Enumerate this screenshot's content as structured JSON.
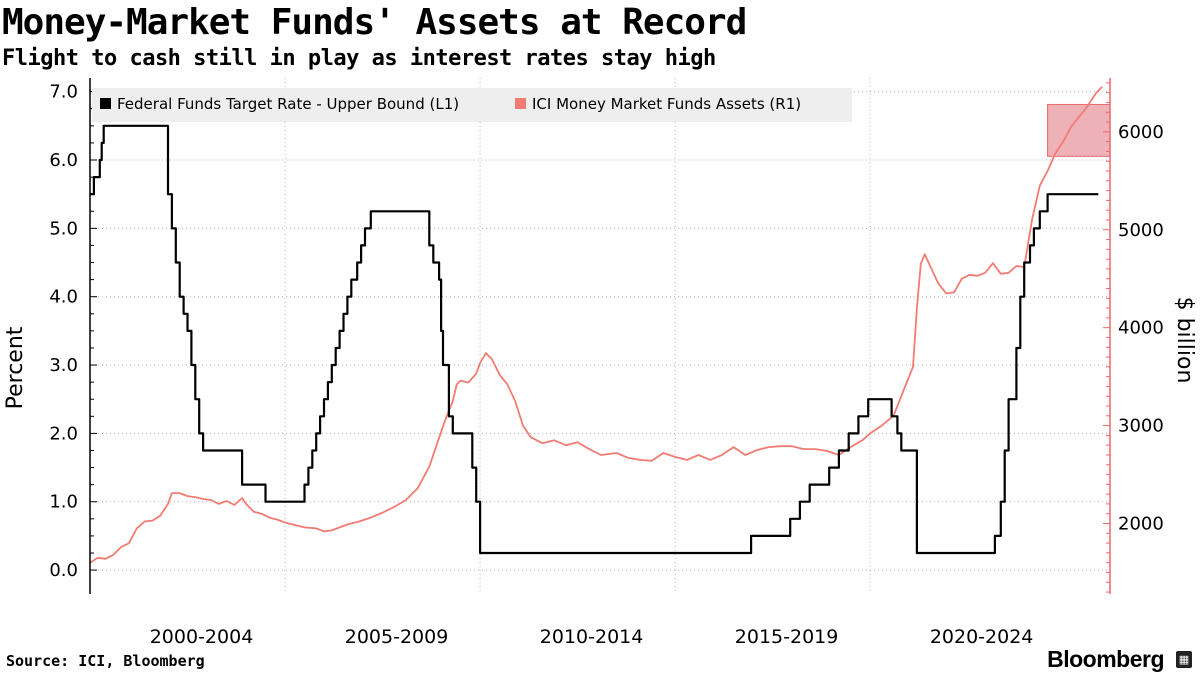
{
  "title": "Money-Market Funds' Assets at Record",
  "subtitle": "Flight to cash still in play as interest rates stay high",
  "footer": {
    "source": "Source: ICI, Bloomberg",
    "brand": "Bloomberg"
  },
  "colors": {
    "rate_line": "#000000",
    "assets_line": "#f07c73",
    "right_axis": "#e8686c",
    "highlight": "#e8909a",
    "grid": "#b5b5b5",
    "legend_bg": "#eeeeee"
  },
  "chart_data": {
    "type": "line",
    "title": "Money-Market Funds' Assets at Record",
    "subtitle": "Flight to cash still in play as interest rates stay high",
    "left_axis": {
      "label": "Percent",
      "range": [
        -0.35,
        7.2
      ],
      "ticks": [
        0.0,
        1.0,
        2.0,
        3.0,
        4.0,
        5.0,
        6.0,
        7.0
      ],
      "tick_labels": [
        "0.0",
        "1.0",
        "2.0",
        "3.0",
        "4.0",
        "5.0",
        "6.0",
        "7.0"
      ]
    },
    "right_axis": {
      "label": "$ billion",
      "range": [
        1280,
        6550
      ],
      "ticks": [
        2000,
        3000,
        4000,
        5000,
        6000
      ],
      "tick_labels": [
        "2000",
        "3000",
        "4000",
        "5000",
        "6000"
      ]
    },
    "x_axis": {
      "range": [
        1999.0,
        2025.15
      ],
      "period_labels": [
        "2000-2004",
        "2005-2009",
        "2010-2014",
        "2015-2019",
        "2020-2024"
      ],
      "gridlines": [
        2004.0,
        2009.0,
        2014.0,
        2019.0
      ]
    },
    "legend": {
      "placement": "top-left",
      "entries": [
        "Federal Funds Target Rate - Upper Bound  (L1)",
        "ICI Money Market Funds Assets (R1)"
      ]
    },
    "grid": true,
    "highlight": {
      "x": [
        2023.55,
        2025.2
      ],
      "y": [
        5750,
        6280
      ],
      "axis": "right"
    },
    "series": [
      {
        "name": "Federal Funds Target Rate - Upper Bound  (L1)",
        "axis": "left",
        "step": true,
        "points": [
          [
            1999.0,
            5.5
          ],
          [
            1999.1,
            5.75
          ],
          [
            1999.25,
            6.0
          ],
          [
            1999.3,
            6.25
          ],
          [
            1999.35,
            6.5
          ],
          [
            2000.0,
            6.5
          ],
          [
            2001.0,
            5.5
          ],
          [
            2001.1,
            5.0
          ],
          [
            2001.2,
            4.5
          ],
          [
            2001.3,
            4.0
          ],
          [
            2001.4,
            3.75
          ],
          [
            2001.5,
            3.5
          ],
          [
            2001.6,
            3.0
          ],
          [
            2001.7,
            2.5
          ],
          [
            2001.8,
            2.0
          ],
          [
            2001.9,
            1.75
          ],
          [
            2002.9,
            1.25
          ],
          [
            2003.5,
            1.0
          ],
          [
            2004.5,
            1.25
          ],
          [
            2004.6,
            1.5
          ],
          [
            2004.7,
            1.75
          ],
          [
            2004.8,
            2.0
          ],
          [
            2004.9,
            2.25
          ],
          [
            2005.0,
            2.5
          ],
          [
            2005.1,
            2.75
          ],
          [
            2005.2,
            3.0
          ],
          [
            2005.3,
            3.25
          ],
          [
            2005.4,
            3.5
          ],
          [
            2005.5,
            3.75
          ],
          [
            2005.6,
            4.0
          ],
          [
            2005.7,
            4.25
          ],
          [
            2005.85,
            4.5
          ],
          [
            2005.95,
            4.75
          ],
          [
            2006.05,
            5.0
          ],
          [
            2006.2,
            5.25
          ],
          [
            2007.7,
            4.75
          ],
          [
            2007.8,
            4.5
          ],
          [
            2007.95,
            4.25
          ],
          [
            2008.0,
            3.5
          ],
          [
            2008.05,
            3.0
          ],
          [
            2008.2,
            2.25
          ],
          [
            2008.3,
            2.0
          ],
          [
            2008.8,
            1.5
          ],
          [
            2008.9,
            1.0
          ],
          [
            2009.0,
            0.25
          ],
          [
            2015.95,
            0.5
          ],
          [
            2016.95,
            0.75
          ],
          [
            2017.2,
            1.0
          ],
          [
            2017.45,
            1.25
          ],
          [
            2017.95,
            1.5
          ],
          [
            2018.2,
            1.75
          ],
          [
            2018.45,
            2.0
          ],
          [
            2018.7,
            2.25
          ],
          [
            2018.95,
            2.5
          ],
          [
            2019.55,
            2.25
          ],
          [
            2019.7,
            2.0
          ],
          [
            2019.8,
            1.75
          ],
          [
            2020.2,
            0.25
          ],
          [
            2022.2,
            0.5
          ],
          [
            2022.35,
            1.0
          ],
          [
            2022.45,
            1.75
          ],
          [
            2022.55,
            2.5
          ],
          [
            2022.75,
            3.25
          ],
          [
            2022.85,
            4.0
          ],
          [
            2022.95,
            4.5
          ],
          [
            2023.1,
            4.75
          ],
          [
            2023.2,
            5.0
          ],
          [
            2023.35,
            5.25
          ],
          [
            2023.55,
            5.5
          ],
          [
            2024.85,
            5.5
          ]
        ]
      },
      {
        "name": "ICI Money Market Funds Assets (R1)",
        "axis": "right",
        "step": false,
        "points": [
          [
            1999.0,
            1600
          ],
          [
            1999.2,
            1650
          ],
          [
            1999.4,
            1640
          ],
          [
            1999.6,
            1680
          ],
          [
            1999.8,
            1760
          ],
          [
            2000.0,
            1800
          ],
          [
            2000.2,
            1950
          ],
          [
            2000.4,
            2020
          ],
          [
            2000.6,
            2030
          ],
          [
            2000.8,
            2080
          ],
          [
            2001.0,
            2200
          ],
          [
            2001.1,
            2310
          ],
          [
            2001.3,
            2310
          ],
          [
            2001.5,
            2280
          ],
          [
            2001.7,
            2270
          ],
          [
            2001.9,
            2250
          ],
          [
            2002.1,
            2240
          ],
          [
            2002.3,
            2200
          ],
          [
            2002.5,
            2230
          ],
          [
            2002.7,
            2190
          ],
          [
            2002.9,
            2260
          ],
          [
            2003.0,
            2200
          ],
          [
            2003.2,
            2120
          ],
          [
            2003.4,
            2100
          ],
          [
            2003.6,
            2060
          ],
          [
            2003.8,
            2040
          ],
          [
            2004.0,
            2010
          ],
          [
            2004.2,
            1990
          ],
          [
            2004.5,
            1960
          ],
          [
            2004.8,
            1950
          ],
          [
            2005.0,
            1920
          ],
          [
            2005.2,
            1930
          ],
          [
            2005.4,
            1960
          ],
          [
            2005.6,
            1990
          ],
          [
            2005.9,
            2020
          ],
          [
            2006.2,
            2060
          ],
          [
            2006.5,
            2110
          ],
          [
            2006.8,
            2170
          ],
          [
            2007.1,
            2240
          ],
          [
            2007.4,
            2360
          ],
          [
            2007.7,
            2580
          ],
          [
            2007.9,
            2820
          ],
          [
            2008.1,
            3050
          ],
          [
            2008.3,
            3250
          ],
          [
            2008.4,
            3420
          ],
          [
            2008.5,
            3460
          ],
          [
            2008.7,
            3440
          ],
          [
            2008.9,
            3530
          ],
          [
            2009.0,
            3640
          ],
          [
            2009.15,
            3740
          ],
          [
            2009.3,
            3680
          ],
          [
            2009.5,
            3520
          ],
          [
            2009.7,
            3420
          ],
          [
            2009.9,
            3250
          ],
          [
            2010.1,
            3000
          ],
          [
            2010.3,
            2880
          ],
          [
            2010.6,
            2820
          ],
          [
            2010.9,
            2850
          ],
          [
            2011.2,
            2800
          ],
          [
            2011.5,
            2830
          ],
          [
            2011.8,
            2760
          ],
          [
            2012.1,
            2700
          ],
          [
            2012.5,
            2720
          ],
          [
            2012.8,
            2670
          ],
          [
            2013.1,
            2650
          ],
          [
            2013.4,
            2640
          ],
          [
            2013.7,
            2720
          ],
          [
            2014.0,
            2680
          ],
          [
            2014.3,
            2650
          ],
          [
            2014.6,
            2700
          ],
          [
            2014.9,
            2650
          ],
          [
            2015.2,
            2700
          ],
          [
            2015.5,
            2780
          ],
          [
            2015.8,
            2700
          ],
          [
            2016.1,
            2750
          ],
          [
            2016.4,
            2780
          ],
          [
            2016.7,
            2790
          ],
          [
            2017.0,
            2790
          ],
          [
            2017.3,
            2760
          ],
          [
            2017.6,
            2760
          ],
          [
            2017.9,
            2740
          ],
          [
            2018.2,
            2700
          ],
          [
            2018.5,
            2780
          ],
          [
            2018.8,
            2850
          ],
          [
            2019.0,
            2920
          ],
          [
            2019.3,
            3000
          ],
          [
            2019.6,
            3100
          ],
          [
            2019.8,
            3300
          ],
          [
            2020.0,
            3500
          ],
          [
            2020.1,
            3600
          ],
          [
            2020.2,
            4200
          ],
          [
            2020.3,
            4650
          ],
          [
            2020.4,
            4750
          ],
          [
            2020.55,
            4620
          ],
          [
            2020.75,
            4450
          ],
          [
            2020.95,
            4350
          ],
          [
            2021.15,
            4360
          ],
          [
            2021.35,
            4500
          ],
          [
            2021.55,
            4540
          ],
          [
            2021.75,
            4530
          ],
          [
            2021.95,
            4560
          ],
          [
            2022.15,
            4660
          ],
          [
            2022.35,
            4550
          ],
          [
            2022.55,
            4560
          ],
          [
            2022.75,
            4630
          ],
          [
            2022.95,
            4620
          ],
          [
            2023.15,
            5100
          ],
          [
            2023.35,
            5450
          ],
          [
            2023.55,
            5600
          ],
          [
            2023.75,
            5780
          ],
          [
            2023.95,
            5900
          ],
          [
            2024.15,
            6050
          ],
          [
            2024.35,
            6150
          ],
          [
            2024.55,
            6250
          ],
          [
            2024.8,
            6400
          ],
          [
            2024.95,
            6460
          ]
        ]
      }
    ]
  }
}
